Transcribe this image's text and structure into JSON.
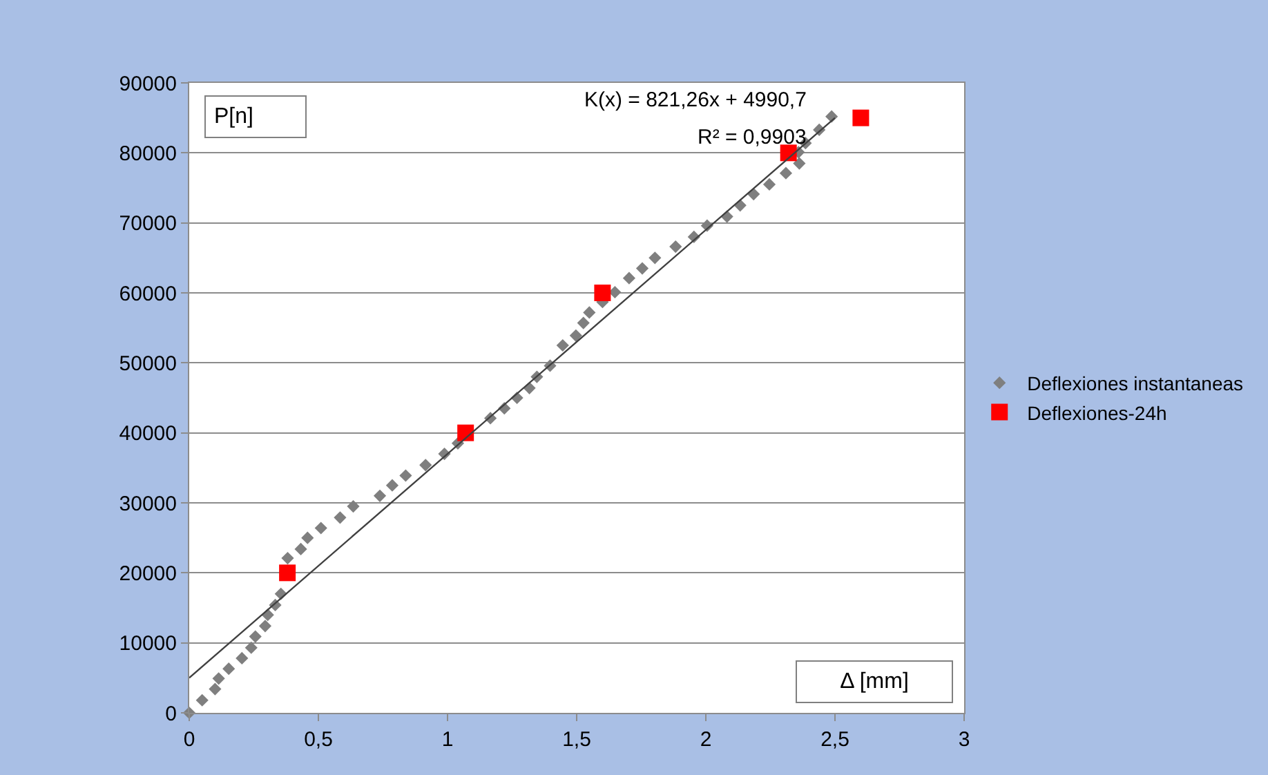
{
  "chart_data": {
    "type": "scatter",
    "xlabel": "Δ [mm]",
    "ylabel": "P[n]",
    "xlim": [
      0,
      3
    ],
    "xticks": [
      0,
      {
        "value": 0.5,
        "label": "0,5"
      },
      1,
      {
        "value": 1.5,
        "label": "1,5"
      },
      2,
      {
        "value": 2.5,
        "label": "2,5"
      },
      3
    ],
    "ylim": [
      0,
      90000
    ],
    "yticks": [
      0,
      10000,
      20000,
      30000,
      40000,
      50000,
      60000,
      70000,
      80000,
      90000
    ],
    "grid": "y",
    "legend": "right",
    "series": [
      {
        "name": "Deflexiones instantaneas",
        "marker": "diamond",
        "color": "#7f7f7f",
        "x": [
          0,
          0.05,
          0.1,
          0.114,
          0.153,
          0.204,
          0.24,
          0.256,
          0.294,
          0.304,
          0.333,
          0.355,
          0.381,
          0.432,
          0.458,
          0.51,
          0.584,
          0.635,
          0.738,
          0.786,
          0.838,
          0.915,
          0.988,
          1.04,
          1.166,
          1.22,
          1.269,
          1.317,
          1.346,
          1.397,
          1.446,
          1.497,
          1.526,
          1.549,
          1.6,
          1.648,
          1.703,
          1.754,
          1.803,
          1.883,
          1.954,
          2.005,
          2.082,
          2.133,
          2.185,
          2.246,
          2.31,
          2.362,
          2.359,
          2.386,
          2.439,
          2.487
        ],
        "values": [
          0,
          1800,
          3400,
          4900,
          6300,
          7800,
          9300,
          10900,
          12400,
          14000,
          15400,
          17000,
          22100,
          23400,
          25000,
          26400,
          27900,
          29500,
          31000,
          32500,
          33900,
          35400,
          37000,
          38500,
          42100,
          43500,
          45000,
          46400,
          48000,
          49600,
          52500,
          53900,
          55700,
          57200,
          58700,
          60100,
          62100,
          63500,
          65000,
          66600,
          68000,
          69600,
          70900,
          72500,
          74100,
          75500,
          77100,
          78500,
          80100,
          81400,
          83300,
          85200
        ]
      },
      {
        "name": "Deflexiones-24h",
        "marker": "square",
        "color": "#ff0000",
        "x": [
          0.38,
          1.07,
          1.6,
          2.32,
          2.6
        ],
        "values": [
          20000,
          40000,
          60000,
          80000,
          85000
        ]
      },
      {
        "type": "line",
        "marker": "none",
        "line_style": "solid",
        "color": "#404040",
        "x": [
          0,
          2.5
        ],
        "values": [
          5000,
          85000
        ]
      }
    ],
    "annotations": [
      "K(x) = 821,26x + 4990,7",
      "R² = 0,9903"
    ]
  }
}
